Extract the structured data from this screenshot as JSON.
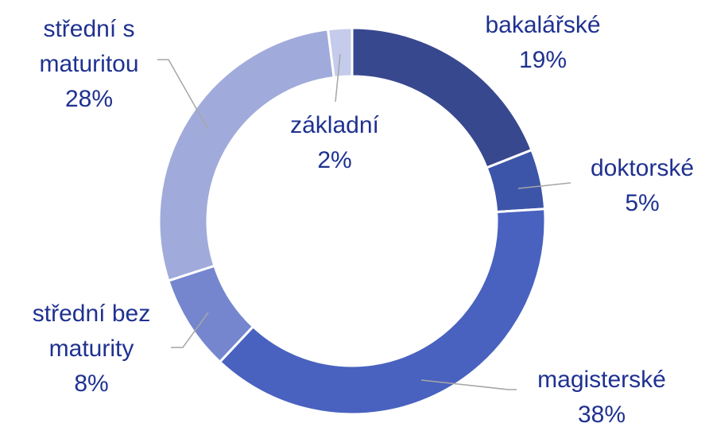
{
  "chart_data": {
    "type": "donut",
    "categories": [
      "bakalářské",
      "doktorské",
      "magisterské",
      "střední bez maturity",
      "střední s maturitou",
      "základní"
    ],
    "values": [
      19,
      5,
      38,
      8,
      28,
      2
    ],
    "value_labels": [
      "19%",
      "5%",
      "38%",
      "8%",
      "28%",
      "2%"
    ],
    "colors": [
      "#38488f",
      "#3d55a8",
      "#4962bf",
      "#7586cf",
      "#a0abdb",
      "#c5cbeb"
    ]
  }
}
